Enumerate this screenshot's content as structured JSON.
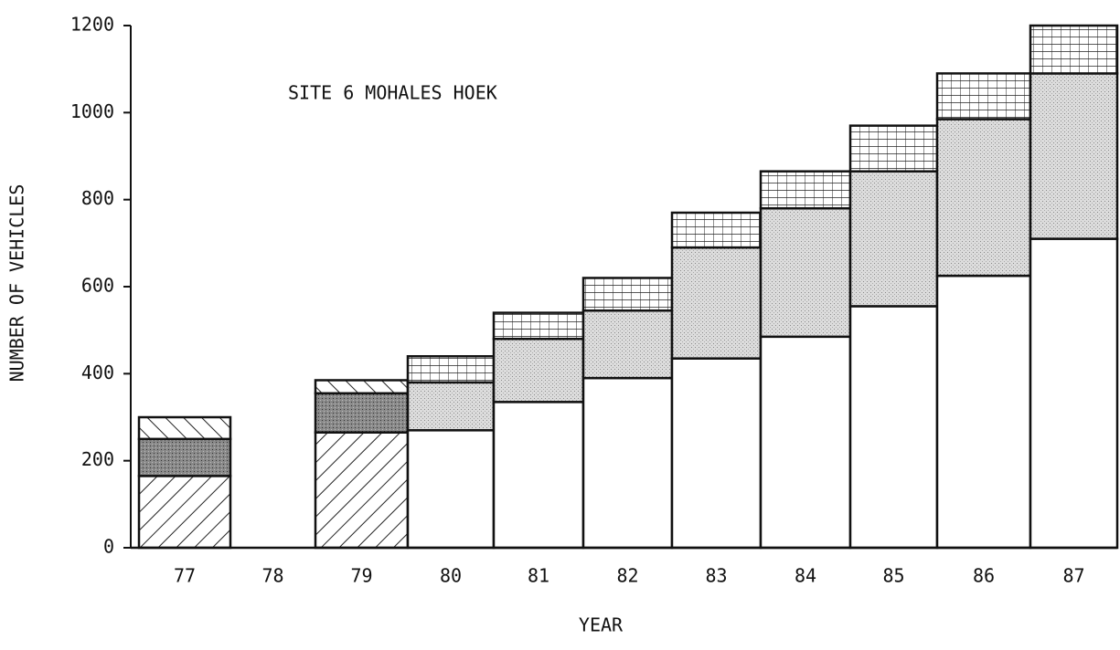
{
  "chart_data": {
    "type": "stacked_bar",
    "title": "SITE 6  MOHALES HOEK",
    "xlabel": "YEAR",
    "ylabel": "NUMBER OF VEHICLES",
    "categories": [
      "77",
      "78",
      "79",
      "80",
      "81",
      "82",
      "83",
      "84",
      "85",
      "86",
      "87"
    ],
    "series": [
      {
        "pattern": "hatch",
        "values": [
          165,
          null,
          265,
          null,
          null,
          null,
          null,
          null,
          null,
          null,
          null
        ]
      },
      {
        "pattern": "dark",
        "values": [
          85,
          null,
          90,
          null,
          null,
          null,
          null,
          null,
          null,
          null,
          null
        ]
      },
      {
        "pattern": "hatch-rev",
        "values": [
          50,
          null,
          30,
          null,
          null,
          null,
          null,
          null,
          null,
          null,
          null
        ]
      },
      {
        "pattern": "white",
        "values": [
          null,
          null,
          null,
          270,
          335,
          390,
          435,
          485,
          555,
          625,
          710
        ]
      },
      {
        "pattern": "stipple",
        "values": [
          null,
          null,
          null,
          110,
          145,
          155,
          255,
          295,
          310,
          360,
          380
        ]
      },
      {
        "pattern": "grid",
        "values": [
          null,
          null,
          null,
          60,
          60,
          75,
          80,
          85,
          105,
          105,
          110
        ]
      }
    ],
    "ylim": [
      0,
      1200
    ],
    "yticks": [
      0,
      200,
      400,
      600,
      800,
      1000,
      1200
    ]
  }
}
